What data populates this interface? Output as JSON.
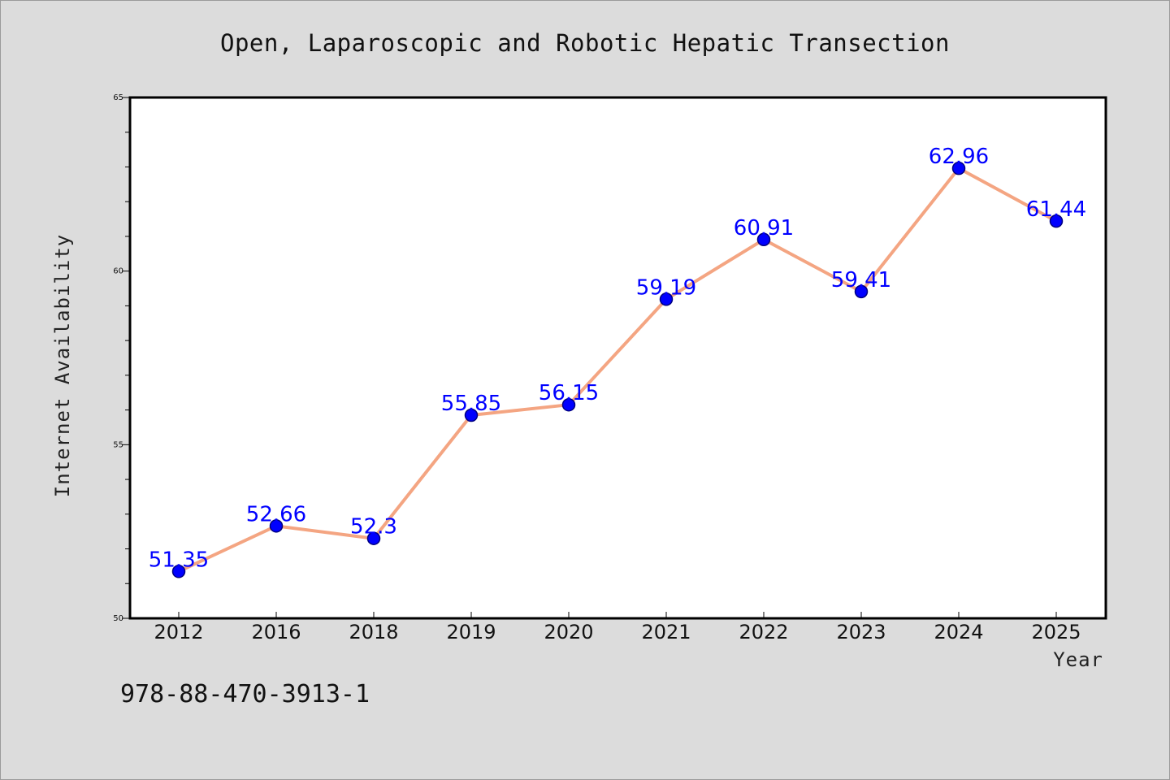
{
  "footer": "978-88-470-3913-1",
  "colors": {
    "background": "#dcdcdc",
    "plot_background": "#ffffff",
    "line": "#f4a582",
    "marker": "#0000ff",
    "marker_edge": "#000080",
    "data_label": "#0000ff"
  },
  "chart_data": {
    "type": "line",
    "title": "Open, Laparoscopic and Robotic Hepatic Transection",
    "xlabel": "Year",
    "ylabel": "Internet Availability",
    "categories": [
      "2012",
      "2016",
      "2018",
      "2019",
      "2020",
      "2021",
      "2022",
      "2023",
      "2024",
      "2025"
    ],
    "series": [
      {
        "values": [
          51.35,
          52.66,
          52.3,
          55.85,
          56.15,
          59.19,
          60.91,
          59.41,
          62.96,
          61.44
        ],
        "labels": [
          "51.35",
          "52.66",
          "52.3",
          "55.85",
          "56.15",
          "59.19",
          "60.91",
          "59.41",
          "62.96",
          "61.44"
        ]
      }
    ],
    "ylim": [
      50,
      65
    ],
    "yticks": [
      50,
      55,
      60,
      65
    ],
    "ytick_labels": [
      "50",
      "55",
      "60",
      "65"
    ],
    "grid": false,
    "legend": "none"
  }
}
